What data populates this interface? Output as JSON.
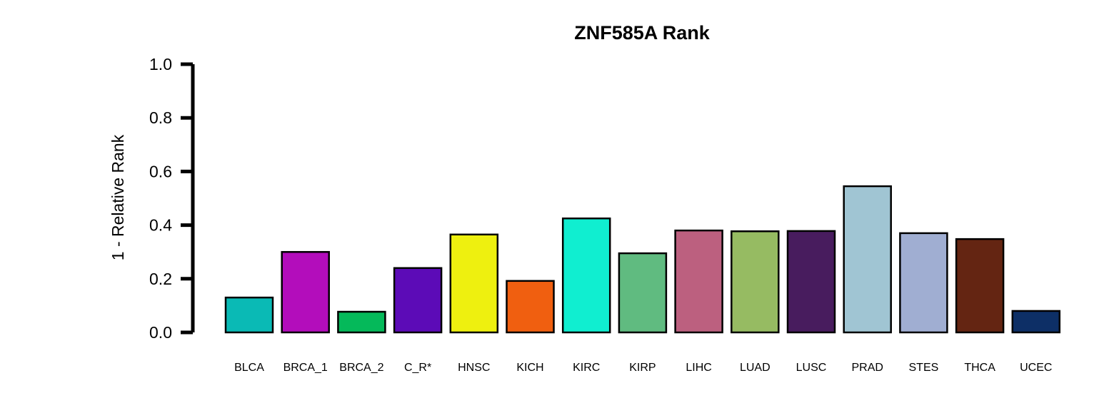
{
  "chart_data": {
    "type": "bar",
    "title": "ZNF585A Rank",
    "xlabel": "",
    "ylabel": "1 - Relative Rank",
    "ylim": [
      0,
      1
    ],
    "yticks": [
      "0.0",
      "0.2",
      "0.4",
      "0.6",
      "0.8",
      "1.0"
    ],
    "grid": false,
    "legend": "none",
    "categories": [
      "BLCA",
      "BRCA_1",
      "BRCA_2",
      "C_R*",
      "HNSC",
      "KICH",
      "KIRC",
      "KIRP",
      "LIHC",
      "LUAD",
      "LUSC",
      "PRAD",
      "STES",
      "THCA",
      "UCEC"
    ],
    "values": [
      0.13,
      0.3,
      0.077,
      0.24,
      0.365,
      0.192,
      0.425,
      0.295,
      0.38,
      0.377,
      0.378,
      0.545,
      0.37,
      0.348,
      0.08
    ],
    "colors": [
      "#0ABAB5",
      "#B30DBB",
      "#05B95A",
      "#5C0BB7",
      "#EEF00F",
      "#F05F10",
      "#10EED0",
      "#60BB80",
      "#BC607F",
      "#96BB62",
      "#481C5E",
      "#A0C5D3",
      "#A0AED2",
      "#642512",
      "#0D2F66"
    ]
  }
}
